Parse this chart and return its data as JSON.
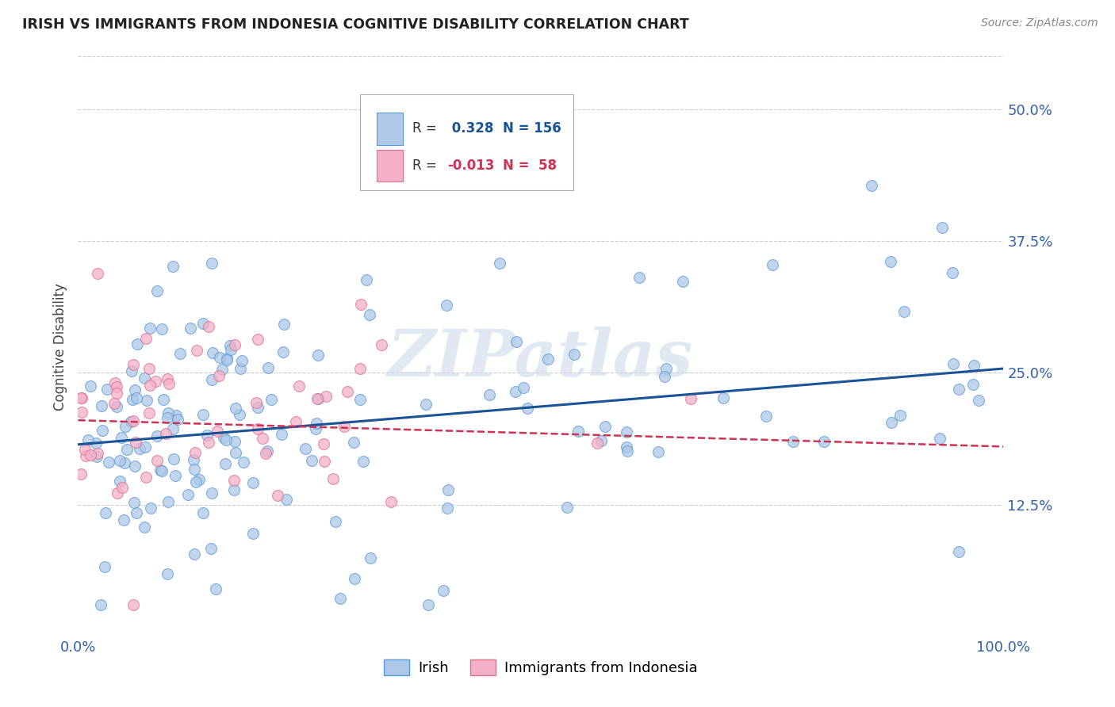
{
  "title": "IRISH VS IMMIGRANTS FROM INDONESIA COGNITIVE DISABILITY CORRELATION CHART",
  "source": "Source: ZipAtlas.com",
  "ylabel": "Cognitive Disability",
  "xlim": [
    0,
    1.0
  ],
  "ylim": [
    0,
    0.55
  ],
  "yticks": [
    0.125,
    0.25,
    0.375,
    0.5
  ],
  "ytick_labels": [
    "12.5%",
    "25.0%",
    "37.5%",
    "50.0%"
  ],
  "irish_color": "#adc8e8",
  "irish_edge_color": "#5b9bd5",
  "indonesia_color": "#f4b0c8",
  "indonesia_edge_color": "#e07090",
  "irish_line_color": "#1a5296",
  "indonesia_line_color": "#cc3355",
  "watermark": "ZIPatlas",
  "background_color": "#ffffff",
  "grid_color": "#cccccc",
  "tick_color": "#3060aa",
  "irish_intercept": 0.182,
  "irish_slope": 0.072,
  "indonesia_intercept": 0.205,
  "indonesia_slope": -0.025
}
